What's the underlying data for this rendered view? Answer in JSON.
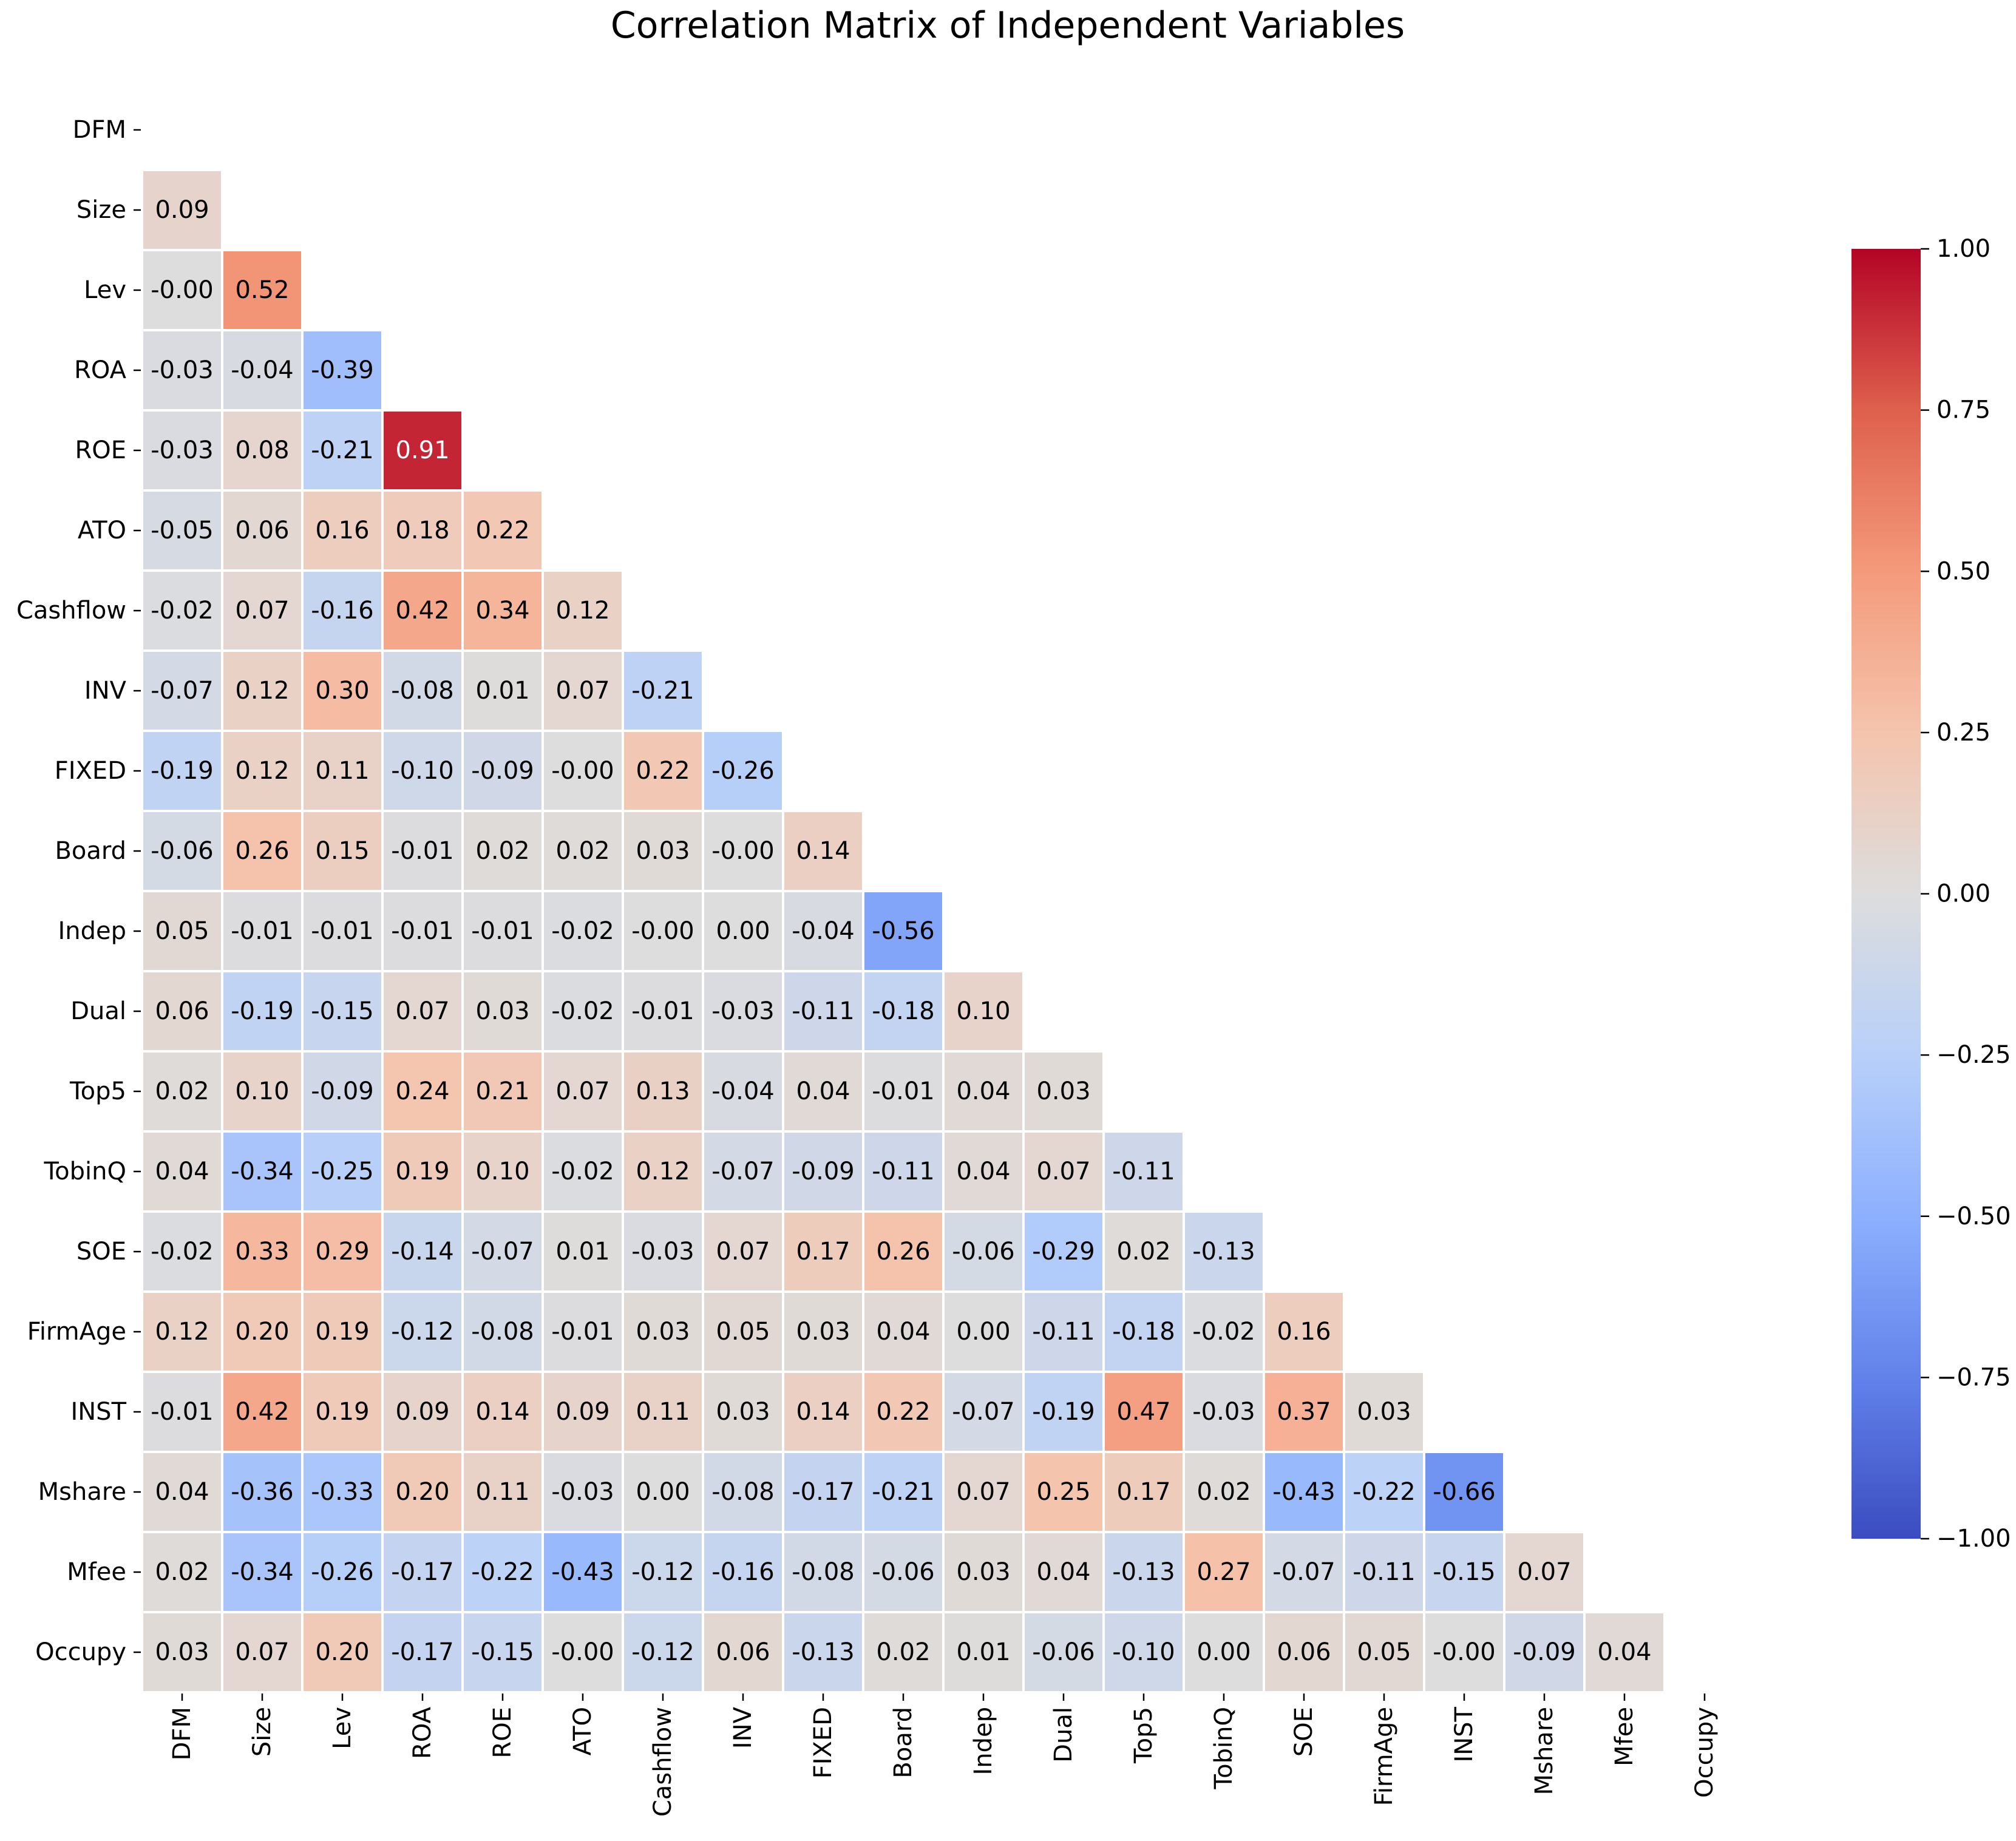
{
  "chart_data": {
    "type": "heatmap",
    "title": "Correlation Matrix of Independent Variables",
    "variables": [
      "DFM",
      "Size",
      "Lev",
      "ROA",
      "ROE",
      "ATO",
      "Cashflow",
      "INV",
      "FIXED",
      "Board",
      "Indep",
      "Dual",
      "Top5",
      "TobinQ",
      "SOE",
      "FirmAge",
      "INST",
      "Mshare",
      "Mfee",
      "Occupy"
    ],
    "matrix": [
      [],
      [
        0.09
      ],
      [
        -0.0,
        0.52
      ],
      [
        -0.03,
        -0.04,
        -0.39
      ],
      [
        -0.03,
        0.08,
        -0.21,
        0.91
      ],
      [
        -0.05,
        0.06,
        0.16,
        0.18,
        0.22
      ],
      [
        -0.02,
        0.07,
        -0.16,
        0.42,
        0.34,
        0.12
      ],
      [
        -0.07,
        0.12,
        0.3,
        -0.08,
        0.01,
        0.07,
        -0.21
      ],
      [
        -0.19,
        0.12,
        0.11,
        -0.1,
        -0.09,
        -0.0,
        0.22,
        -0.26
      ],
      [
        -0.06,
        0.26,
        0.15,
        -0.01,
        0.02,
        0.02,
        0.03,
        -0.0,
        0.14
      ],
      [
        0.05,
        -0.01,
        -0.01,
        -0.01,
        -0.01,
        -0.02,
        -0.0,
        0.0,
        -0.04,
        -0.56
      ],
      [
        0.06,
        -0.19,
        -0.15,
        0.07,
        0.03,
        -0.02,
        -0.01,
        -0.03,
        -0.11,
        -0.18,
        0.1
      ],
      [
        0.02,
        0.1,
        -0.09,
        0.24,
        0.21,
        0.07,
        0.13,
        -0.04,
        0.04,
        -0.01,
        0.04,
        0.03
      ],
      [
        0.04,
        -0.34,
        -0.25,
        0.19,
        0.1,
        -0.02,
        0.12,
        -0.07,
        -0.09,
        -0.11,
        0.04,
        0.07,
        -0.11
      ],
      [
        -0.02,
        0.33,
        0.29,
        -0.14,
        -0.07,
        0.01,
        -0.03,
        0.07,
        0.17,
        0.26,
        -0.06,
        -0.29,
        0.02,
        -0.13
      ],
      [
        0.12,
        0.2,
        0.19,
        -0.12,
        -0.08,
        -0.01,
        0.03,
        0.05,
        0.03,
        0.04,
        0.0,
        -0.11,
        -0.18,
        -0.02,
        0.16
      ],
      [
        -0.01,
        0.42,
        0.19,
        0.09,
        0.14,
        0.09,
        0.11,
        0.03,
        0.14,
        0.22,
        -0.07,
        -0.19,
        0.47,
        -0.03,
        0.37,
        0.03
      ],
      [
        0.04,
        -0.36,
        -0.33,
        0.2,
        0.11,
        -0.03,
        0.0,
        -0.08,
        -0.17,
        -0.21,
        0.07,
        0.25,
        0.17,
        0.02,
        -0.43,
        -0.22,
        -0.66
      ],
      [
        0.02,
        -0.34,
        -0.26,
        -0.17,
        -0.22,
        -0.43,
        -0.12,
        -0.16,
        -0.08,
        -0.06,
        0.03,
        0.04,
        -0.13,
        0.27,
        -0.07,
        -0.11,
        -0.15,
        0.07
      ],
      [
        0.03,
        0.07,
        0.2,
        -0.17,
        -0.15,
        -0.0,
        -0.12,
        0.06,
        -0.13,
        0.02,
        0.01,
        -0.06,
        -0.1,
        0.0,
        0.06,
        0.05,
        -0.0,
        -0.09,
        0.04
      ]
    ],
    "value_format": "2 decimals",
    "colorbar": {
      "min": -1.0,
      "max": 1.0,
      "ticks": [
        1.0,
        0.75,
        0.5,
        0.25,
        0.0,
        -0.25,
        -0.5,
        -0.75,
        -1.0
      ],
      "tick_labels": [
        "1.00",
        "0.75",
        "0.50",
        "0.25",
        "0.00",
        "−0.25",
        "−0.50",
        "−0.75",
        "−1.00"
      ],
      "colormap": "coolwarm",
      "placement": "right"
    },
    "mask": "upper triangle including diagonal",
    "xlabel": "",
    "ylabel": ""
  }
}
